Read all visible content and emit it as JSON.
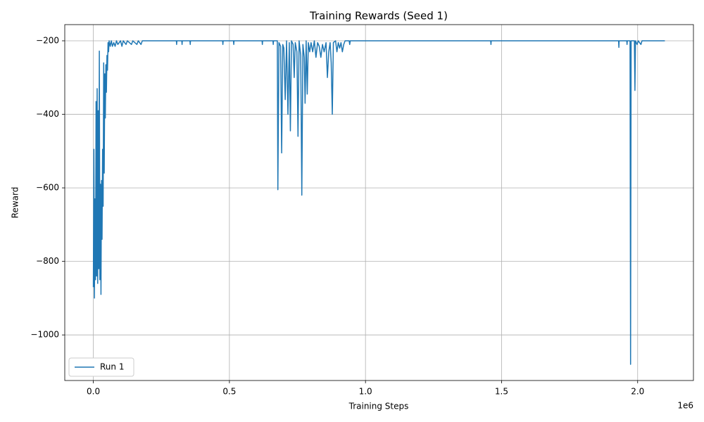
{
  "chart_data": {
    "type": "line",
    "title": "Training Rewards (Seed 1)",
    "xlabel": "Training Steps",
    "ylabel": "Reward",
    "x_offset_label": "1e6",
    "xlim": [
      -105000,
      2205000
    ],
    "xticks": [
      {
        "value": 0,
        "label": "0.0"
      },
      {
        "value": 500000,
        "label": "0.5"
      },
      {
        "value": 1000000,
        "label": "1.0"
      },
      {
        "value": 1500000,
        "label": "1.5"
      },
      {
        "value": 2000000,
        "label": "2.0"
      }
    ],
    "ylim": [
      -1124,
      -156
    ],
    "yticks": [
      {
        "value": -1000,
        "label": "−1000"
      },
      {
        "value": -800,
        "label": "−800"
      },
      {
        "value": -600,
        "label": "−600"
      },
      {
        "value": -400,
        "label": "−400"
      },
      {
        "value": -200,
        "label": "−200"
      }
    ],
    "grid": true,
    "legend": "lower left",
    "x": [
      0,
      2000,
      4000,
      6000,
      8000,
      10000,
      12000,
      14000,
      16000,
      18000,
      20000,
      22000,
      24000,
      26000,
      28000,
      30000,
      32000,
      34000,
      36000,
      38000,
      40000,
      42000,
      44000,
      46000,
      48000,
      50000,
      52000,
      54000,
      56000,
      58000,
      62000,
      66000,
      70000,
      75000,
      80000,
      85000,
      90000,
      100000,
      105000,
      110000,
      120000,
      125000,
      140000,
      145000,
      160000,
      165000,
      175000,
      180000,
      305000,
      306000,
      307000,
      325000,
      326000,
      327000,
      355000,
      356000,
      357000,
      475000,
      476000,
      477000,
      515000,
      516000,
      517000,
      620000,
      621000,
      622000,
      660000,
      661000,
      662000,
      676000,
      678000,
      682000,
      688000,
      692000,
      696000,
      700000,
      705000,
      710000,
      715000,
      720000,
      724000,
      728000,
      734000,
      738000,
      742000,
      748000,
      752000,
      756000,
      762000,
      766000,
      770000,
      775000,
      778000,
      782000,
      786000,
      790000,
      795000,
      800000,
      806000,
      812000,
      818000,
      824000,
      830000,
      836000,
      842000,
      848000,
      855000,
      860000,
      865000,
      870000,
      874000,
      878000,
      882000,
      890000,
      895000,
      900000,
      905000,
      910000,
      915000,
      920000,
      925000,
      940000,
      942000,
      944000,
      1460000,
      1461000,
      1462000,
      1930000,
      1931000,
      1932000,
      1960000,
      1961000,
      1962000,
      1972000,
      1974000,
      1976000,
      1988000,
      1990000,
      1992000,
      1998000,
      2002000,
      2012000,
      2016000,
      2100000
    ],
    "series": [
      {
        "name": "Run 1",
        "color": "#1f77b4",
        "values": [
          -870,
          -495,
          -900,
          -630,
          -850,
          -365,
          -840,
          -330,
          -860,
          -390,
          -820,
          -228,
          -850,
          -590,
          -890,
          -580,
          -740,
          -495,
          -650,
          -260,
          -560,
          -290,
          -410,
          -265,
          -340,
          -240,
          -280,
          -205,
          -230,
          -200,
          -215,
          -200,
          -215,
          -205,
          -215,
          -200,
          -210,
          -200,
          -215,
          -200,
          -210,
          -200,
          -210,
          -200,
          -210,
          -200,
          -210,
          -200,
          -200,
          -210,
          -200,
          -200,
          -210,
          -200,
          -200,
          -210,
          -200,
          -200,
          -210,
          -200,
          -200,
          -210,
          -200,
          -200,
          -210,
          -200,
          -200,
          -210,
          -200,
          -200,
          -605,
          -205,
          -215,
          -505,
          -210,
          -220,
          -360,
          -200,
          -400,
          -205,
          -445,
          -200,
          -210,
          -300,
          -205,
          -230,
          -460,
          -200,
          -240,
          -620,
          -210,
          -245,
          -370,
          -200,
          -345,
          -205,
          -230,
          -205,
          -230,
          -200,
          -245,
          -205,
          -215,
          -245,
          -210,
          -230,
          -205,
          -300,
          -230,
          -205,
          -260,
          -400,
          -205,
          -200,
          -230,
          -205,
          -220,
          -205,
          -230,
          -210,
          -200,
          -200,
          -210,
          -200,
          -200,
          -210,
          -200,
          -200,
          -218,
          -200,
          -200,
          -210,
          -200,
          -200,
          -1080,
          -200,
          -200,
          -335,
          -200,
          -210,
          -200,
          -210,
          -200,
          -200
        ]
      }
    ]
  }
}
